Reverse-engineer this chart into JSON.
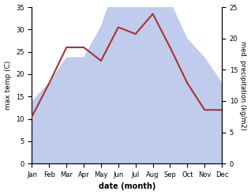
{
  "months": [
    "Jan",
    "Feb",
    "Mar",
    "Apr",
    "May",
    "Jun",
    "Jul",
    "Aug",
    "Sep",
    "Oct",
    "Nov",
    "Dec"
  ],
  "temperature": [
    10.5,
    18.0,
    26.0,
    26.0,
    23.0,
    30.5,
    29.0,
    33.5,
    26.0,
    18.0,
    12.0,
    12.0
  ],
  "precipitation": [
    10.0,
    13.0,
    17.0,
    17.0,
    22.0,
    30.0,
    29.0,
    32.0,
    26.0,
    20.0,
    17.0,
    13.0
  ],
  "temp_color": "#b03030",
  "precip_fill_color": "#c0ccee",
  "precip_fill_alpha": 1.0,
  "ylabel_left": "max temp (C)",
  "ylabel_right": "med. precipitation (kg/m2)",
  "xlabel": "date (month)",
  "ylim_left": [
    0,
    35
  ],
  "ylim_right": [
    0,
    25
  ],
  "yticks_left": [
    0,
    5,
    10,
    15,
    20,
    25,
    30,
    35
  ],
  "yticks_right": [
    0,
    5,
    10,
    15,
    20,
    25
  ],
  "background_color": "#ffffff"
}
